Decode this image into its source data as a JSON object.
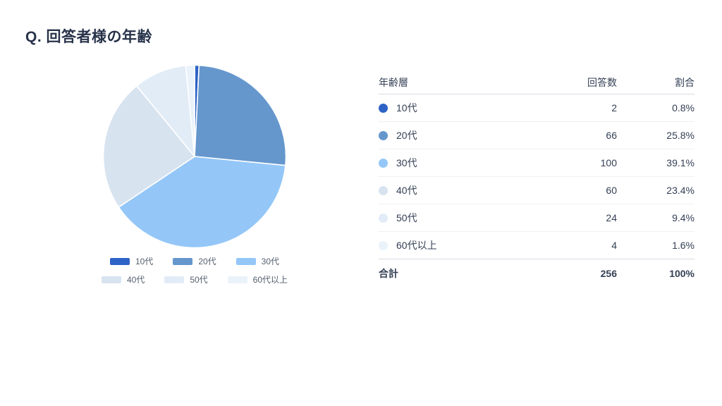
{
  "page": {
    "title": "Q. 回答者様の年齢"
  },
  "chart_data": {
    "type": "pie",
    "title": "Q. 回答者様の年齢",
    "categories": [
      "10代",
      "20代",
      "30代",
      "40代",
      "50代",
      "60代以上"
    ],
    "values": [
      2,
      66,
      100,
      60,
      24,
      4
    ],
    "percentages": [
      "0.8%",
      "25.8%",
      "39.1%",
      "23.4%",
      "9.4%",
      "1.6%"
    ],
    "total": 256,
    "colors": [
      "#2e63c6",
      "#6597cd",
      "#94c7f8",
      "#d8e3f0",
      "#e2ecf7",
      "#eaf2fa"
    ],
    "start_angle_deg": -90,
    "direction": "clockwise",
    "legend_position": "bottom",
    "slice_border_color": "#ffffff"
  },
  "table": {
    "headers": {
      "age_group": "年齢層",
      "count": "回答数",
      "ratio": "割合"
    },
    "rows": [
      {
        "label": "10代",
        "count": "2",
        "pct": "0.8%"
      },
      {
        "label": "20代",
        "count": "66",
        "pct": "25.8%"
      },
      {
        "label": "30代",
        "count": "100",
        "pct": "39.1%"
      },
      {
        "label": "40代",
        "count": "60",
        "pct": "23.4%"
      },
      {
        "label": "50代",
        "count": "24",
        "pct": "9.4%"
      },
      {
        "label": "60代以上",
        "count": "4",
        "pct": "1.6%"
      }
    ],
    "total_row": {
      "label": "合計",
      "count": "256",
      "pct": "100%"
    }
  }
}
